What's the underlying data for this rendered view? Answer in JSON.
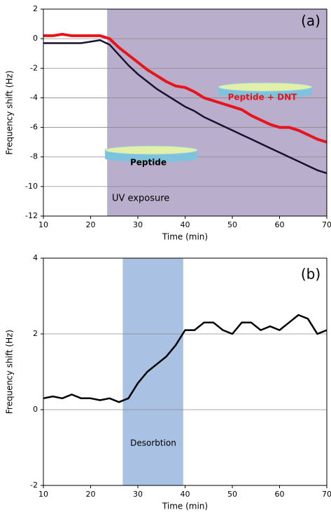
{
  "chart_data": [
    {
      "type": "line",
      "xlabel": "Time (min)",
      "ylabel": "Frequency shift (Hz)",
      "xlim": [
        10,
        70
      ],
      "xticks": [
        10,
        20,
        30,
        40,
        50,
        60,
        70
      ],
      "ylim": [
        -12,
        2
      ],
      "yticks": [
        2,
        0,
        -2,
        -4,
        -6,
        -8,
        -10,
        -12
      ],
      "grid": true,
      "shaded_xrange": [
        23.5,
        70
      ],
      "shade_color": "#b9aecb",
      "x": [
        10,
        12,
        14,
        16,
        18,
        20,
        22,
        24,
        26,
        28,
        30,
        32,
        34,
        36,
        38,
        40,
        42,
        44,
        46,
        48,
        50,
        52,
        54,
        56,
        58,
        60,
        62,
        64,
        66,
        68,
        70
      ],
      "series": [
        {
          "color": "#1a1030",
          "values": [
            -0.3,
            -0.3,
            -0.3,
            -0.3,
            -0.3,
            -0.2,
            -0.1,
            -0.4,
            -1.1,
            -1.8,
            -2.4,
            -2.9,
            -3.4,
            -3.8,
            -4.2,
            -4.6,
            -4.9,
            -5.3,
            -5.6,
            -5.9,
            -6.2,
            -6.5,
            -6.8,
            -7.1,
            -7.4,
            -7.7,
            -8.0,
            -8.3,
            -8.6,
            -8.9,
            -9.1
          ]
        },
        {
          "color": "#e8141c",
          "values": [
            0.2,
            0.2,
            0.3,
            0.2,
            0.2,
            0.2,
            0.2,
            0.0,
            -0.6,
            -1.1,
            -1.6,
            -2.1,
            -2.5,
            -2.9,
            -3.2,
            -3.3,
            -3.6,
            -4.0,
            -4.2,
            -4.4,
            -4.6,
            -4.8,
            -5.2,
            -5.5,
            -5.8,
            -6.0,
            -6.0,
            -6.2,
            -6.5,
            -6.8,
            -7.0
          ]
        }
      ],
      "annotations": [
        "(a)",
        "UV exposure",
        "Peptide",
        "Peptide + DNT"
      ]
    },
    {
      "type": "line",
      "xlabel": "Time (min)",
      "ylabel": "Frequency shift (Hz)",
      "xlim": [
        10,
        70
      ],
      "xticks": [
        10,
        20,
        30,
        40,
        50,
        60,
        70
      ],
      "ylim": [
        -2,
        4
      ],
      "yticks": [
        4,
        2,
        0,
        -2
      ],
      "grid": true,
      "shaded_xrange": [
        26.8,
        39.6
      ],
      "shade_color": "#a9c1e2",
      "x": [
        10,
        12,
        14,
        16,
        18,
        20,
        22,
        24,
        26,
        28,
        30,
        32,
        34,
        36,
        38,
        40,
        42,
        44,
        46,
        48,
        50,
        52,
        54,
        56,
        58,
        60,
        62,
        64,
        66,
        68,
        70
      ],
      "series": [
        {
          "color": "#000000",
          "values": [
            0.3,
            0.35,
            0.3,
            0.4,
            0.3,
            0.3,
            0.25,
            0.3,
            0.2,
            0.3,
            0.7,
            1.0,
            1.2,
            1.4,
            1.7,
            2.1,
            2.1,
            2.3,
            2.3,
            2.1,
            2.0,
            2.3,
            2.3,
            2.1,
            2.2,
            2.1,
            2.3,
            2.5,
            2.4,
            2.0,
            2.1
          ]
        }
      ],
      "annotations": [
        "(b)",
        "Desorbtion"
      ]
    }
  ]
}
